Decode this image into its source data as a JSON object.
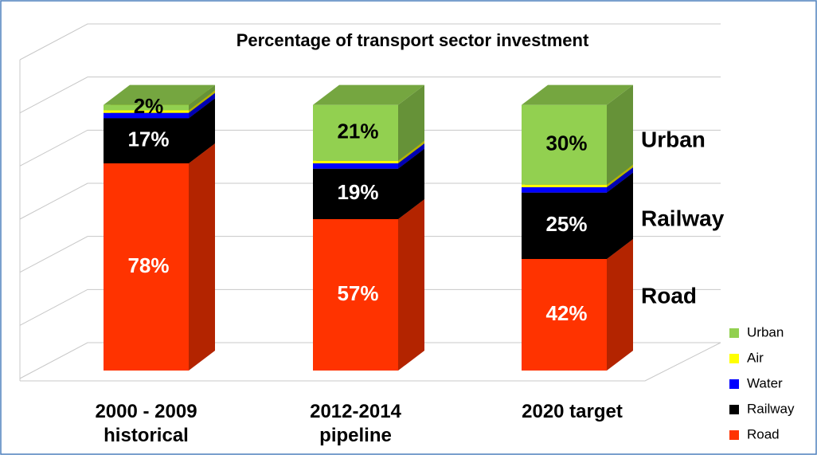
{
  "chart_data": {
    "type": "bar3d_stacked",
    "title": "Percentage of transport sector investment",
    "categories": [
      "2000 - 2009\nhistorical",
      "2012-2014\npipeline",
      "2020 target"
    ],
    "series": [
      {
        "name": "Road",
        "color": "#ff3300",
        "values": [
          78,
          57,
          42
        ],
        "value_labels": [
          "78%",
          "57%",
          "42%"
        ]
      },
      {
        "name": "Railway",
        "color": "#000000",
        "values": [
          17,
          19,
          25
        ],
        "value_labels": [
          "17%",
          "19%",
          "25%"
        ]
      },
      {
        "name": "Water",
        "color": "#0000ff",
        "values": [
          2,
          2,
          2
        ]
      },
      {
        "name": "Air",
        "color": "#ffff00",
        "values": [
          1,
          1,
          1
        ]
      },
      {
        "name": "Urban",
        "color": "#92d050",
        "values": [
          2,
          21,
          30
        ],
        "value_labels": [
          "2%",
          "21%",
          "30%"
        ]
      }
    ],
    "annotations": [
      "Urban",
      "Railway",
      "Road"
    ],
    "ylim": [
      0,
      120
    ],
    "yticks": [
      0,
      20,
      40,
      60,
      80,
      100,
      120
    ],
    "grid": true,
    "legend": "right"
  }
}
